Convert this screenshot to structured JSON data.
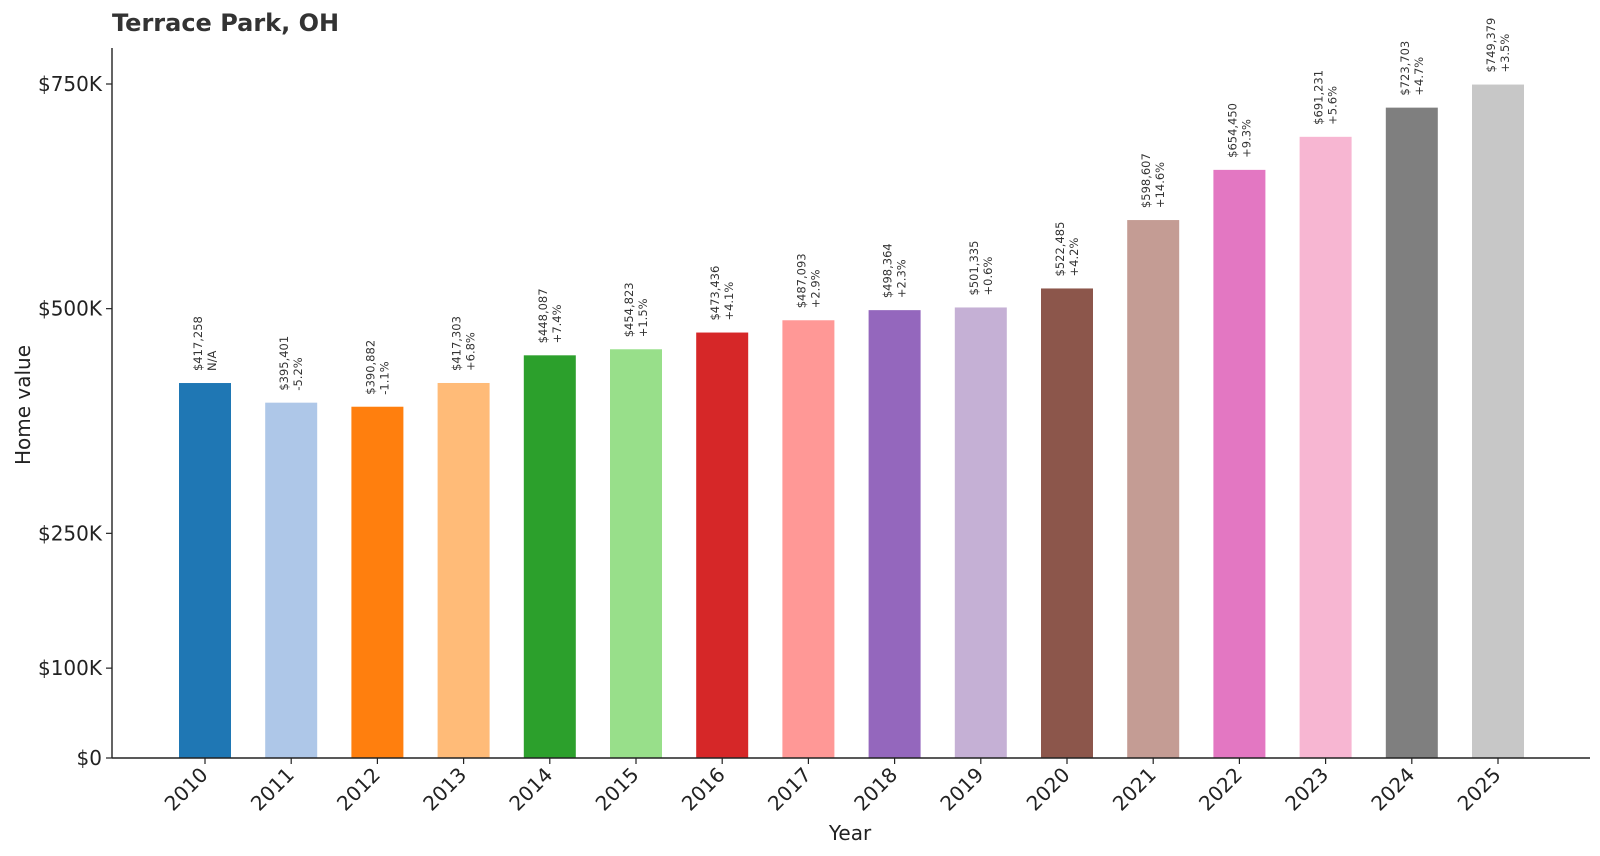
{
  "chart_data": {
    "type": "bar",
    "title": "Terrace Park, OH",
    "xlabel": "Year",
    "ylabel": "Home value",
    "categories": [
      "2010",
      "2011",
      "2012",
      "2013",
      "2014",
      "2015",
      "2016",
      "2017",
      "2018",
      "2019",
      "2020",
      "2021",
      "2022",
      "2023",
      "2024",
      "2025"
    ],
    "values": [
      417258,
      395401,
      390882,
      417303,
      448087,
      454823,
      473436,
      487093,
      498364,
      501335,
      522485,
      598607,
      654450,
      691231,
      723703,
      749379
    ],
    "value_labels": [
      "$417,258",
      "$395,401",
      "$390,882",
      "$417,303",
      "$448,087",
      "$454,823",
      "$473,436",
      "$487,093",
      "$498,364",
      "$501,335",
      "$522,485",
      "$598,607",
      "$654,450",
      "$691,231",
      "$723,703",
      "$749,379"
    ],
    "change_labels": [
      "N/A",
      "-5.2%",
      "-1.1%",
      "+6.8%",
      "+7.4%",
      "+1.5%",
      "+4.1%",
      "+2.9%",
      "+2.3%",
      "+0.6%",
      "+4.2%",
      "+14.6%",
      "+9.3%",
      "+5.6%",
      "+4.7%",
      "+3.5%"
    ],
    "colors": [
      "#1f77b4",
      "#aec7e8",
      "#ff7f0e",
      "#ffbb78",
      "#2ca02c",
      "#98df8a",
      "#d62728",
      "#ff9896",
      "#9467bd",
      "#c5b0d5",
      "#8c564b",
      "#c49c94",
      "#e377c2",
      "#f7b6d2",
      "#7f7f7f",
      "#c7c7c7"
    ],
    "yticks": [
      0,
      100000,
      250000,
      500000,
      750000
    ],
    "ytick_labels": [
      "$0",
      "$100K",
      "$250K",
      "$500K",
      "$750K"
    ],
    "ylim": [
      0,
      750000
    ],
    "grid": false,
    "legend": "none"
  }
}
